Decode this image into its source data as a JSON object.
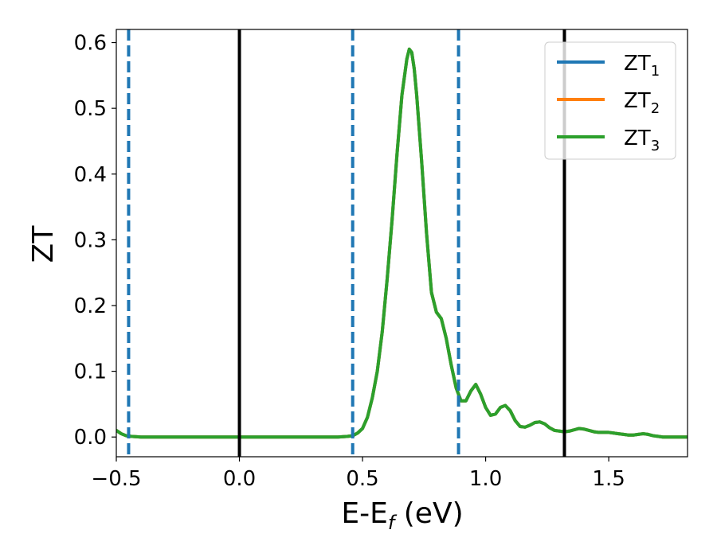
{
  "chart_data": {
    "type": "line",
    "title": "",
    "xlabel": "E-E",
    "xlabel_subscript": "f",
    "xlabel_suffix": " (eV)",
    "ylabel": "ZT",
    "xlim": [
      -0.5,
      1.82
    ],
    "ylim": [
      -0.03,
      0.62
    ],
    "xticks": [
      -0.5,
      0.0,
      0.5,
      1.0,
      1.5
    ],
    "xtick_labels": [
      "−0.5",
      "0.0",
      "0.5",
      "1.0",
      "1.5"
    ],
    "yticks": [
      0.0,
      0.1,
      0.2,
      0.3,
      0.4,
      0.5,
      0.6
    ],
    "ytick_labels": [
      "0.0",
      "0.1",
      "0.2",
      "0.3",
      "0.4",
      "0.5",
      "0.6"
    ],
    "grid": false,
    "legend_position": "top-right",
    "vlines_solid": [
      0.0,
      1.32
    ],
    "vlines_dashed": [
      -0.45,
      0.46,
      0.89
    ],
    "vline_solid_color": "#000000",
    "vline_dashed_color": "#1f77b4",
    "series": [
      {
        "name": "ZT",
        "subscript": "1",
        "color": "#1f77b4"
      },
      {
        "name": "ZT",
        "subscript": "2",
        "color": "#ff7f0e"
      },
      {
        "name": "ZT",
        "subscript": "3",
        "color": "#2ca02c"
      }
    ],
    "x": [
      -0.5,
      -0.48,
      -0.46,
      -0.44,
      -0.4,
      -0.3,
      -0.2,
      -0.1,
      0.0,
      0.1,
      0.2,
      0.3,
      0.4,
      0.44,
      0.46,
      0.48,
      0.5,
      0.52,
      0.54,
      0.56,
      0.58,
      0.6,
      0.62,
      0.64,
      0.66,
      0.68,
      0.69,
      0.7,
      0.71,
      0.72,
      0.74,
      0.76,
      0.78,
      0.8,
      0.82,
      0.83,
      0.84,
      0.86,
      0.88,
      0.9,
      0.92,
      0.94,
      0.96,
      0.98,
      1.0,
      1.02,
      1.04,
      1.06,
      1.08,
      1.1,
      1.12,
      1.14,
      1.16,
      1.18,
      1.2,
      1.22,
      1.24,
      1.26,
      1.28,
      1.3,
      1.32,
      1.34,
      1.36,
      1.38,
      1.4,
      1.42,
      1.44,
      1.46,
      1.48,
      1.5,
      1.52,
      1.54,
      1.56,
      1.58,
      1.6,
      1.62,
      1.64,
      1.66,
      1.68,
      1.7,
      1.72,
      1.74,
      1.76,
      1.78,
      1.8,
      1.82
    ],
    "y": [
      0.01,
      0.005,
      0.002,
      0.001,
      0.0,
      0.0,
      0.0,
      0.0,
      0.0,
      0.0,
      0.0,
      0.0,
      0.0,
      0.001,
      0.002,
      0.006,
      0.013,
      0.03,
      0.06,
      0.1,
      0.16,
      0.24,
      0.33,
      0.43,
      0.52,
      0.575,
      0.59,
      0.585,
      0.56,
      0.52,
      0.42,
      0.31,
      0.22,
      0.19,
      0.18,
      0.165,
      0.15,
      0.11,
      0.075,
      0.055,
      0.055,
      0.07,
      0.08,
      0.065,
      0.045,
      0.033,
      0.035,
      0.045,
      0.048,
      0.04,
      0.025,
      0.016,
      0.015,
      0.018,
      0.022,
      0.023,
      0.02,
      0.014,
      0.01,
      0.009,
      0.008,
      0.009,
      0.011,
      0.013,
      0.012,
      0.01,
      0.008,
      0.007,
      0.007,
      0.007,
      0.006,
      0.005,
      0.004,
      0.003,
      0.003,
      0.004,
      0.005,
      0.004,
      0.002,
      0.001,
      0.0,
      0.0,
      0.0,
      0.0,
      0.0,
      0.0
    ]
  }
}
